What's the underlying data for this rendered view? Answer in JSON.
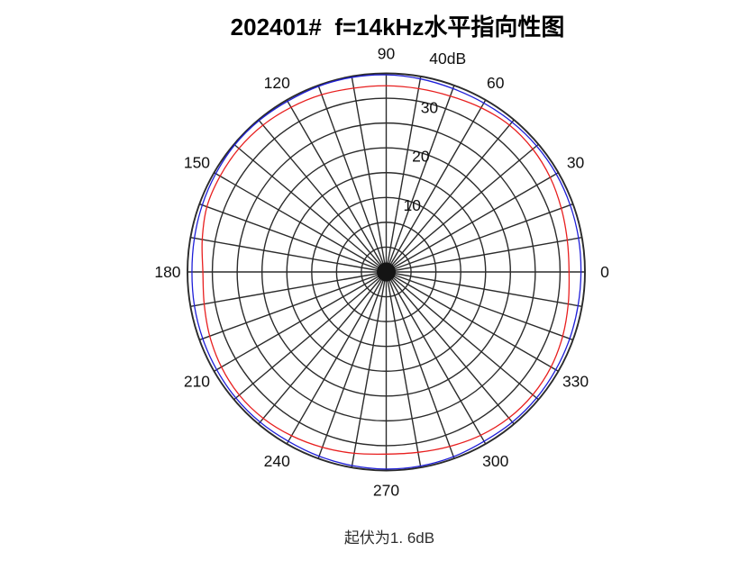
{
  "page": {
    "background": "#ffffff"
  },
  "chart_data": {
    "type": "line",
    "projection": "polar",
    "title": "202401#  f=14kHz水平指向性图",
    "caption": "起伏为1. 6dB",
    "angle_unit": "degrees",
    "r_unit": "dB",
    "r_min": 0,
    "r_max": 40,
    "ring_step_db": 5,
    "spoke_step_deg": 10,
    "grid_color": "#2b2b2b",
    "label_color": "#111111",
    "angle_tick_labels": [
      {
        "deg": 0,
        "label": "0"
      },
      {
        "deg": 30,
        "label": "30"
      },
      {
        "deg": 60,
        "label": "60"
      },
      {
        "deg": 90,
        "label": "90"
      },
      {
        "deg": 120,
        "label": "120"
      },
      {
        "deg": 150,
        "label": "150"
      },
      {
        "deg": 180,
        "label": "180"
      },
      {
        "deg": 210,
        "label": "210"
      },
      {
        "deg": 240,
        "label": "240"
      },
      {
        "deg": 270,
        "label": "270"
      },
      {
        "deg": 300,
        "label": "300"
      },
      {
        "deg": 330,
        "label": "330"
      }
    ],
    "radius_tick_labels": [
      {
        "db": 10,
        "label": "10"
      },
      {
        "db": 20,
        "label": "20"
      },
      {
        "db": 30,
        "label": "30"
      },
      {
        "db": 40,
        "label": "40dB"
      }
    ],
    "angles_deg": [
      0,
      10,
      20,
      30,
      40,
      50,
      60,
      70,
      80,
      90,
      100,
      110,
      120,
      130,
      140,
      150,
      160,
      170,
      180,
      190,
      200,
      210,
      220,
      230,
      240,
      250,
      260,
      270,
      280,
      290,
      300,
      310,
      320,
      330,
      340,
      350
    ],
    "series": [
      {
        "name": "red-trace",
        "color": "#e81f1f",
        "values_db": [
          36.8,
          37.0,
          37.5,
          38.1,
          38.5,
          38.6,
          38.2,
          37.7,
          37.5,
          37.5,
          37.6,
          38.0,
          38.3,
          38.6,
          38.7,
          38.6,
          38.4,
          37.6,
          36.9,
          37.2,
          37.8,
          38.3,
          38.6,
          38.5,
          38.1,
          37.6,
          37.1,
          36.7,
          36.9,
          37.4,
          38.0,
          38.4,
          38.5,
          38.3,
          37.8,
          37.2
        ]
      },
      {
        "name": "blue-trace",
        "color": "#1f1fd8",
        "values_db": [
          39.2,
          39.3,
          39.4,
          39.5,
          39.5,
          39.4,
          39.3,
          39.3,
          39.5,
          39.7,
          39.8,
          39.8,
          39.7,
          39.8,
          39.8,
          39.6,
          39.4,
          39.2,
          39.1,
          39.2,
          39.3,
          39.4,
          39.5,
          39.5,
          39.4,
          39.5,
          39.6,
          39.7,
          39.7,
          39.6,
          39.4,
          39.5,
          39.5,
          39.4,
          39.3,
          39.2
        ]
      }
    ]
  }
}
